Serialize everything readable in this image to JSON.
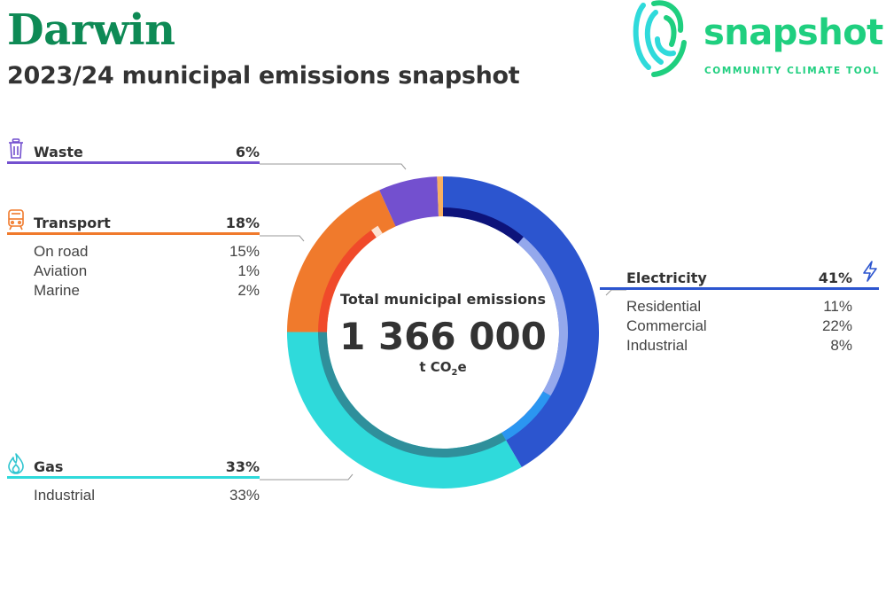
{
  "header": {
    "title": "Darwin",
    "subtitle": "2023/24 municipal emissions snapshot"
  },
  "logo": {
    "wordmark": "snapshot",
    "tagline": "COMMUNITY CLIMATE TOOL",
    "color": "#1fcf7f"
  },
  "chart_data": {
    "type": "donut",
    "center": {
      "label": "Total municipal emissions",
      "total": "1 366 000",
      "unit_prefix": "t CO",
      "unit_sub": "2",
      "unit_suffix": "e"
    },
    "categories": [
      {
        "key": "electricity",
        "name": "Electricity",
        "pct_label": "41%",
        "value": 41,
        "color": "#2c55cf",
        "icon": "lightning-icon",
        "subs": [
          {
            "label": "Residential",
            "pct_label": "11%",
            "value": 11,
            "color": "#0d137a"
          },
          {
            "label": "Commercial",
            "pct_label": "22%",
            "value": 22,
            "color": "#94a8ec"
          },
          {
            "label": "Industrial",
            "pct_label": "8%",
            "value": 8,
            "color": "#2b96f1"
          }
        ]
      },
      {
        "key": "gas",
        "name": "Gas",
        "pct_label": "33%",
        "value": 33,
        "color": "#2fdadb",
        "icon": "flame-icon",
        "subs": [
          {
            "label": "Industrial",
            "pct_label": "33%",
            "value": 33,
            "color": "#2f8f9b"
          }
        ]
      },
      {
        "key": "transport",
        "name": "Transport",
        "pct_label": "18%",
        "value": 18,
        "color": "#f07a2c",
        "icon": "train-icon",
        "subs": [
          {
            "label": "On road",
            "pct_label": "15%",
            "value": 15,
            "color": "#f04a2a"
          },
          {
            "label": "Aviation",
            "pct_label": "1%",
            "value": 1,
            "color": "#fde2d2"
          },
          {
            "label": "Marine",
            "pct_label": "2%",
            "value": 2,
            "color": "#f07a2c"
          }
        ]
      },
      {
        "key": "waste",
        "name": "Waste",
        "pct_label": "6%",
        "value": 6,
        "color": "#7350cf",
        "icon": "trash-icon",
        "subs": []
      },
      {
        "key": "other",
        "name": "",
        "pct_label": "",
        "value": 0.6,
        "color": "#f8b060",
        "icon": "",
        "subs": []
      }
    ]
  }
}
